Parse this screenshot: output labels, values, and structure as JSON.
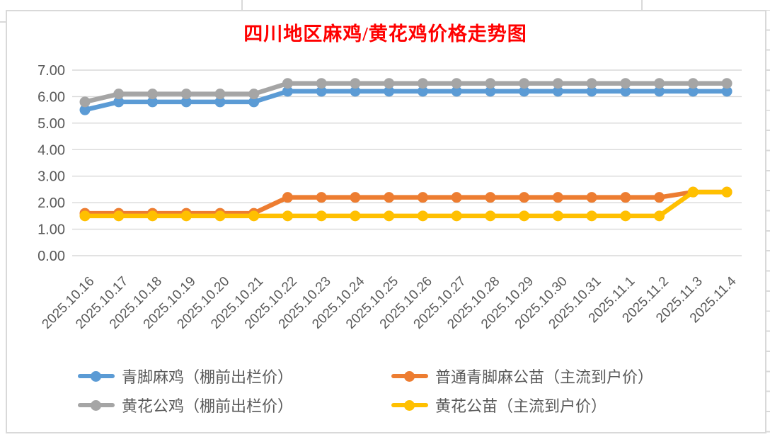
{
  "chart_data": {
    "type": "line",
    "title": "四川地区麻鸡/黄花鸡价格走势图",
    "title_color": "#ff0000",
    "categories": [
      "2025.10.16",
      "2025.10.17",
      "2025.10.18",
      "2025.10.19",
      "2025.10.20",
      "2025.10.21",
      "2025.10.22",
      "2025.10.23",
      "2025.10.24",
      "2025.10.25",
      "2025.10.26",
      "2025.10.27",
      "2025.10.28",
      "2025.10.29",
      "2025.10.30",
      "2025.10.31",
      "2025.11.1",
      "2025.11.2",
      "2025.11.3",
      "2025.11.4"
    ],
    "series": [
      {
        "name": "青脚麻鸡（棚前出栏价）",
        "color": "#5b9bd5",
        "values": [
          5.5,
          5.8,
          5.8,
          5.8,
          5.8,
          5.8,
          6.2,
          6.2,
          6.2,
          6.2,
          6.2,
          6.2,
          6.2,
          6.2,
          6.2,
          6.2,
          6.2,
          6.2,
          6.2,
          6.2
        ]
      },
      {
        "name": "黄花公鸡（棚前出栏价）",
        "color": "#a5a5a5",
        "values": [
          5.8,
          6.1,
          6.1,
          6.1,
          6.1,
          6.1,
          6.5,
          6.5,
          6.5,
          6.5,
          6.5,
          6.5,
          6.5,
          6.5,
          6.5,
          6.5,
          6.5,
          6.5,
          6.5,
          6.5
        ]
      },
      {
        "name": "普通青脚麻公苗（主流到户价）",
        "color": "#ed7d31",
        "values": [
          1.6,
          1.6,
          1.6,
          1.6,
          1.6,
          1.6,
          2.2,
          2.2,
          2.2,
          2.2,
          2.2,
          2.2,
          2.2,
          2.2,
          2.2,
          2.2,
          2.2,
          2.2,
          2.4,
          2.4
        ]
      },
      {
        "name": "黄花公苗（主流到户价）",
        "color": "#ffc000",
        "values": [
          1.5,
          1.5,
          1.5,
          1.5,
          1.5,
          1.5,
          1.5,
          1.5,
          1.5,
          1.5,
          1.5,
          1.5,
          1.5,
          1.5,
          1.5,
          1.5,
          1.5,
          1.5,
          2.4,
          2.4
        ]
      }
    ],
    "xlabel": "",
    "ylabel": "",
    "ylim": [
      0,
      7
    ],
    "y_ticks": [
      {
        "label": "0.00",
        "v": 0
      },
      {
        "label": "1.00",
        "v": 1
      },
      {
        "label": "2.00",
        "v": 2
      },
      {
        "label": "3.00",
        "v": 3
      },
      {
        "label": "4.00",
        "v": 4
      },
      {
        "label": "5.00",
        "v": 5
      },
      {
        "label": "6.00",
        "v": 6
      },
      {
        "label": "7.00",
        "v": 7
      }
    ],
    "grid": true,
    "gridline_color": "#d9d9d9",
    "axis_label_color": "#595959",
    "legend_position": "bottom",
    "legend_columns": 2,
    "legend_grid_order": [
      0,
      2,
      1,
      3
    ]
  }
}
